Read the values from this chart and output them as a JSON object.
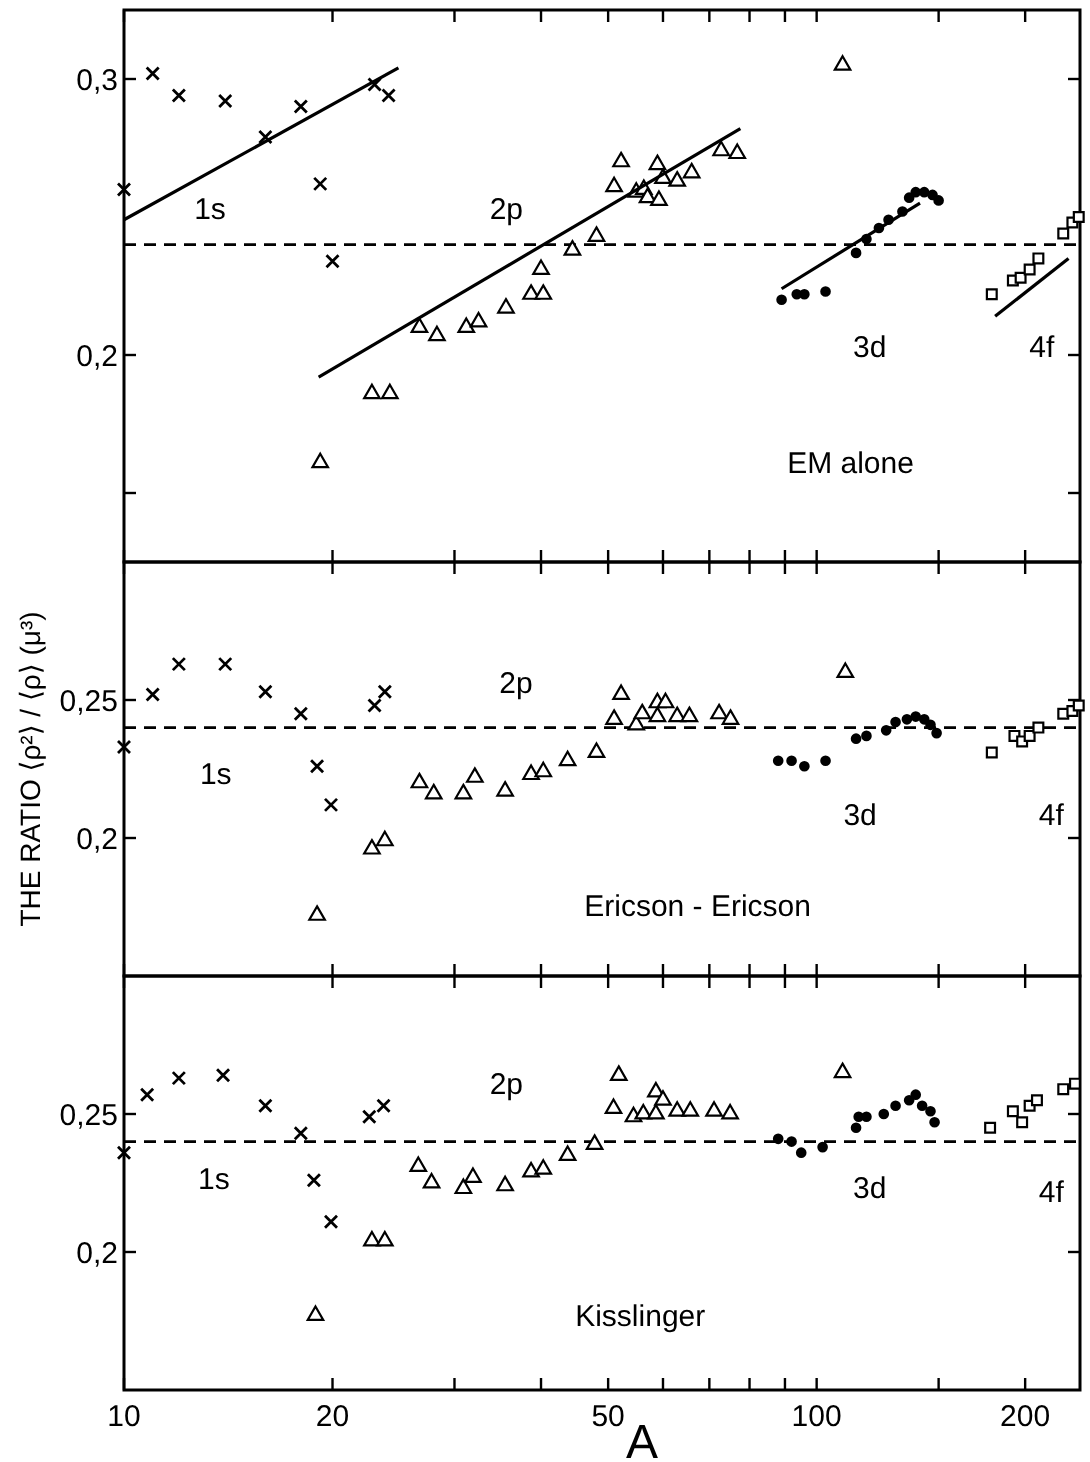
{
  "chart_data": [
    {
      "type": "scatter",
      "log": "x",
      "xlim": [
        10,
        240
      ],
      "ylim": [
        0.125,
        0.325
      ],
      "tick_labels": "y",
      "grid": false,
      "xticks": [
        10,
        20,
        {
          "value": 30,
          "label": null
        },
        {
          "value": 40,
          "label": null
        },
        50,
        {
          "value": 60,
          "label": null
        },
        {
          "value": 70,
          "label": null
        },
        {
          "value": 80,
          "label": null
        },
        {
          "value": 90,
          "label": null
        },
        100,
        {
          "value": 150,
          "label": null
        },
        200
      ],
      "yticks": [
        {
          "value": 0.15,
          "label": null
        },
        {
          "value": 0.2,
          "label": "0,2"
        },
        {
          "value": 0.3,
          "label": "0,3"
        }
      ],
      "series": [
        {
          "color": "#000000",
          "marker": "cross",
          "x": [
            10,
            11,
            12,
            14,
            16,
            18,
            19.2,
            20,
            23,
            24.1
          ],
          "values": [
            0.26,
            0.302,
            0.294,
            0.292,
            0.279,
            0.29,
            0.262,
            0.234,
            0.298,
            0.294
          ]
        },
        {
          "color": "#000000",
          "marker": "triangle",
          "x": [
            19.2,
            22.8,
            24.2,
            26.7,
            28.3,
            31.2,
            32.5,
            35.6,
            38.7,
            40.3,
            40,
            44.4,
            48.1,
            51,
            52.2,
            54.9,
            56.3,
            57,
            59.2,
            58.9,
            60,
            62.9,
            66,
            72.8,
            76.8
          ],
          "values": [
            0.161,
            0.186,
            0.186,
            0.21,
            0.207,
            0.21,
            0.212,
            0.217,
            0.222,
            0.222,
            0.231,
            0.238,
            0.243,
            0.261,
            0.27,
            0.259,
            0.26,
            0.257,
            0.256,
            0.269,
            0.264,
            0.263,
            0.266,
            0.274,
            0.273
          ]
        },
        {
          "color": "#000000",
          "marker": "triangle",
          "x": [
            109
          ],
          "values": [
            0.305
          ]
        },
        {
          "color": "#000000",
          "marker": "circle",
          "x": [
            89,
            93.6,
            96,
            103,
            114,
            118,
            123,
            127,
            133,
            136,
            139,
            143,
            147,
            150
          ],
          "values": [
            0.22,
            0.222,
            0.222,
            0.223,
            0.237,
            0.242,
            0.246,
            0.249,
            0.252,
            0.257,
            0.259,
            0.259,
            0.258,
            0.256
          ]
        },
        {
          "color": "#000000",
          "marker": "square",
          "x": [
            179,
            192,
            197,
            203,
            209,
            227,
            234,
            239
          ],
          "values": [
            0.222,
            0.227,
            0.228,
            0.231,
            0.235,
            0.244,
            0.248,
            0.25
          ]
        },
        {
          "type": "line",
          "color": "#000000",
          "x": [
            10,
            24.9
          ],
          "values": [
            0.249,
            0.304
          ]
        },
        {
          "type": "line",
          "color": "#000000",
          "x": [
            19.1,
            77.6
          ],
          "values": [
            0.192,
            0.282
          ]
        },
        {
          "type": "line",
          "color": "#000000",
          "x": [
            89,
            141
          ],
          "values": [
            0.224,
            0.255
          ]
        },
        {
          "type": "line",
          "color": "#000000",
          "x": [
            181,
            231
          ],
          "values": [
            0.214,
            0.235
          ]
        }
      ],
      "ref_lines": [
        {
          "axis": "y",
          "value": 0.24,
          "line_style": "dashed",
          "color": "#000000"
        }
      ],
      "annotations": [
        "1s",
        "2p",
        "3d",
        "4f",
        "EM alone"
      ]
    },
    {
      "type": "scatter",
      "log": "x",
      "xlim": [
        10,
        240
      ],
      "ylim": [
        0.15,
        0.3
      ],
      "tick_labels": "y",
      "grid": false,
      "ylabel": "THE RATIO ⟨ρ²⟩ / ⟨ρ⟩ (μ³)",
      "xticks": [
        10,
        20,
        {
          "value": 30,
          "label": null
        },
        {
          "value": 40,
          "label": null
        },
        50,
        {
          "value": 60,
          "label": null
        },
        {
          "value": 70,
          "label": null
        },
        {
          "value": 80,
          "label": null
        },
        {
          "value": 90,
          "label": null
        },
        100,
        {
          "value": 150,
          "label": null
        },
        200
      ],
      "yticks": [
        {
          "value": 0.2,
          "label": "0,2"
        },
        {
          "value": 0.25,
          "label": "0,25"
        }
      ],
      "series": [
        {
          "color": "#000000",
          "marker": "cross",
          "x": [
            10,
            11,
            12,
            14,
            16,
            18,
            19,
            19.9,
            23,
            23.8
          ],
          "values": [
            0.233,
            0.252,
            0.263,
            0.263,
            0.253,
            0.245,
            0.226,
            0.212,
            0.248,
            0.253
          ]
        },
        {
          "color": "#000000",
          "marker": "triangle",
          "x": [
            19,
            22.8,
            23.8,
            26.7,
            28,
            30.9,
            32.1,
            35.5,
            38.7,
            40.3,
            48.1,
            51,
            52.2,
            54.9,
            56,
            58.9,
            58.9,
            60.5,
            62.9,
            65.5,
            72.3,
            75.1
          ],
          "values": [
            0.172,
            0.196,
            0.199,
            0.22,
            0.216,
            0.216,
            0.222,
            0.217,
            0.223,
            0.224,
            0.231,
            0.243,
            0.252,
            0.241,
            0.245,
            0.244,
            0.249,
            0.249,
            0.244,
            0.244,
            0.245,
            0.243
          ]
        },
        {
          "color": "#000000",
          "marker": "triangle",
          "x": [
            43.7,
            110
          ],
          "values": [
            0.228,
            0.26
          ]
        },
        {
          "color": "#000000",
          "marker": "circle",
          "x": [
            88,
            92,
            96,
            103,
            114,
            118,
            126,
            130,
            135,
            139,
            143,
            146,
            149
          ],
          "values": [
            0.228,
            0.228,
            0.226,
            0.228,
            0.236,
            0.237,
            0.239,
            0.242,
            0.243,
            0.244,
            0.243,
            0.241,
            0.238
          ]
        },
        {
          "color": "#000000",
          "marker": "square",
          "x": [
            179,
            193,
            198,
            203,
            209,
            227,
            234,
            239
          ],
          "values": [
            0.231,
            0.237,
            0.235,
            0.237,
            0.24,
            0.245,
            0.246,
            0.248
          ]
        }
      ],
      "ref_lines": [
        {
          "axis": "y",
          "value": 0.24,
          "line_style": "dashed",
          "color": "#000000"
        }
      ],
      "annotations": [
        "1s",
        "2p",
        "3d",
        "4f",
        "Ericson - Ericson"
      ]
    },
    {
      "type": "scatter",
      "log": "x",
      "xlim": [
        10,
        240
      ],
      "ylim": [
        0.15,
        0.3
      ],
      "grid": false,
      "xlabel": "A",
      "xticks": [
        10,
        20,
        {
          "value": 30,
          "label": null
        },
        {
          "value": 40,
          "label": null
        },
        50,
        {
          "value": 60,
          "label": null
        },
        {
          "value": 70,
          "label": null
        },
        {
          "value": 80,
          "label": null
        },
        {
          "value": 90,
          "label": null
        },
        100,
        {
          "value": 150,
          "label": null
        },
        200
      ],
      "yticks": [
        {
          "value": 0.2,
          "label": "0,2"
        },
        {
          "value": 0.25,
          "label": "0,25"
        }
      ],
      "series": [
        {
          "color": "#000000",
          "marker": "cross",
          "x": [
            10,
            10.8,
            12,
            13.9,
            16,
            18,
            18.8,
            19.9,
            22.6,
            23.7
          ],
          "values": [
            0.236,
            0.257,
            0.263,
            0.264,
            0.253,
            0.243,
            0.226,
            0.211,
            0.249,
            0.253
          ]
        },
        {
          "color": "#000000",
          "marker": "triangle",
          "x": [
            18.9,
            22.8,
            23.8,
            26.6,
            27.8,
            30.9,
            31.9,
            35.5,
            38.7,
            40.3,
            43.7,
            47.8,
            50.9,
            54.4,
            56.2,
            58.6,
            60,
            58.6,
            62.9,
            65.7,
            71.1,
            75
          ],
          "values": [
            0.177,
            0.204,
            0.204,
            0.231,
            0.225,
            0.223,
            0.227,
            0.224,
            0.229,
            0.23,
            0.235,
            0.239,
            0.252,
            0.249,
            0.25,
            0.258,
            0.255,
            0.25,
            0.251,
            0.251,
            0.251,
            0.25
          ]
        },
        {
          "color": "#000000",
          "marker": "triangle",
          "x": [
            51.8,
            109
          ],
          "values": [
            0.264,
            0.265
          ]
        },
        {
          "color": "#000000",
          "marker": "circle",
          "x": [
            88,
            92,
            95,
            102,
            114,
            115,
            118,
            125,
            130,
            136,
            139,
            142,
            146,
            148
          ],
          "values": [
            0.241,
            0.24,
            0.236,
            0.238,
            0.245,
            0.249,
            0.249,
            0.25,
            0.253,
            0.255,
            0.257,
            0.253,
            0.251,
            0.247
          ]
        },
        {
          "color": "#000000",
          "marker": "square",
          "x": [
            178,
            192,
            198,
            203,
            208,
            227,
            236
          ],
          "values": [
            0.245,
            0.251,
            0.247,
            0.253,
            0.255,
            0.259,
            0.261
          ]
        }
      ],
      "ref_lines": [
        {
          "axis": "y",
          "value": 0.24,
          "line_style": "dashed",
          "color": "#000000"
        }
      ],
      "annotations": [
        "1s",
        "2p",
        "3d",
        "4f",
        "Kisslinger"
      ]
    }
  ]
}
